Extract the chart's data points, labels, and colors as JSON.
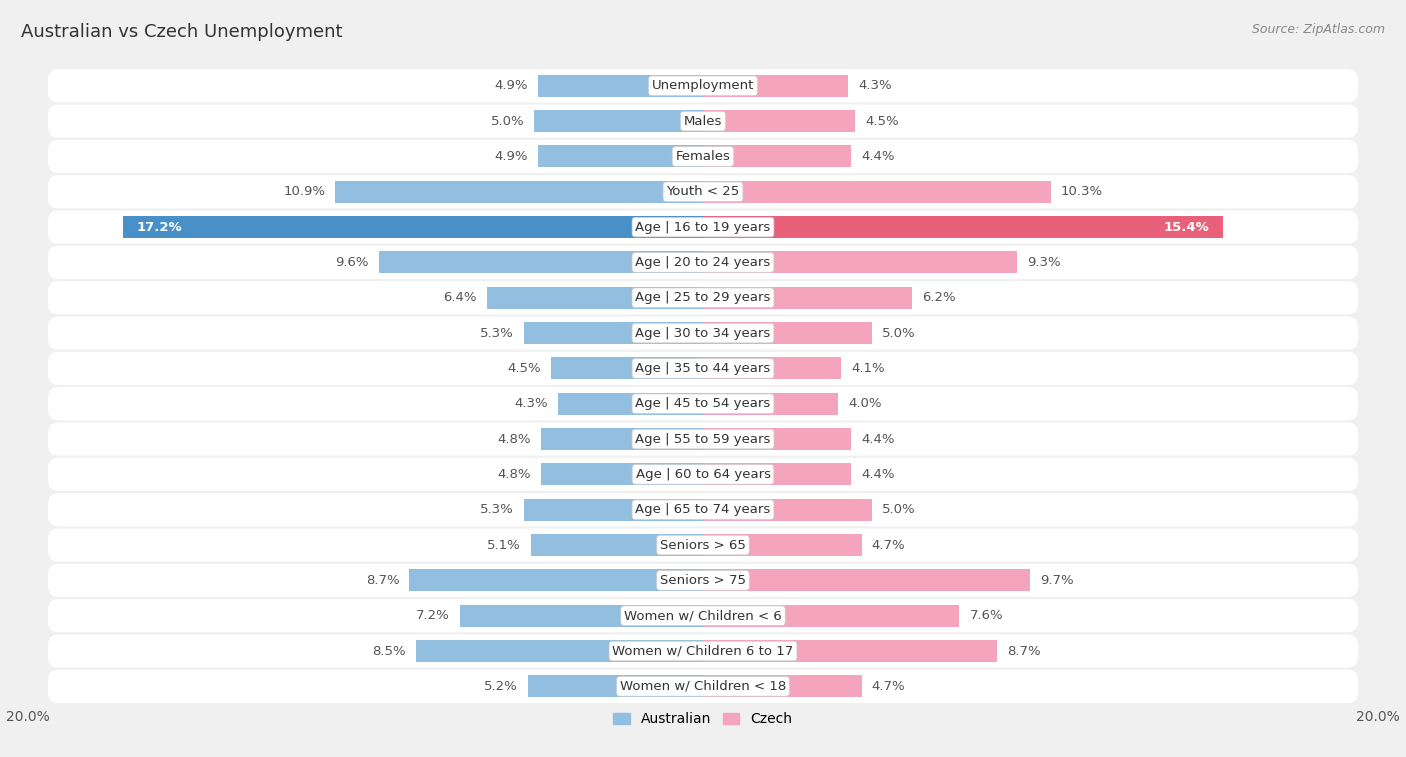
{
  "title": "Australian vs Czech Unemployment",
  "source": "Source: ZipAtlas.com",
  "categories": [
    "Unemployment",
    "Males",
    "Females",
    "Youth < 25",
    "Age | 16 to 19 years",
    "Age | 20 to 24 years",
    "Age | 25 to 29 years",
    "Age | 30 to 34 years",
    "Age | 35 to 44 years",
    "Age | 45 to 54 years",
    "Age | 55 to 59 years",
    "Age | 60 to 64 years",
    "Age | 65 to 74 years",
    "Seniors > 65",
    "Seniors > 75",
    "Women w/ Children < 6",
    "Women w/ Children 6 to 17",
    "Women w/ Children < 18"
  ],
  "australian": [
    4.9,
    5.0,
    4.9,
    10.9,
    17.2,
    9.6,
    6.4,
    5.3,
    4.5,
    4.3,
    4.8,
    4.8,
    5.3,
    5.1,
    8.7,
    7.2,
    8.5,
    5.2
  ],
  "czech": [
    4.3,
    4.5,
    4.4,
    10.3,
    15.4,
    9.3,
    6.2,
    5.0,
    4.1,
    4.0,
    4.4,
    4.4,
    5.0,
    4.7,
    9.7,
    7.6,
    8.7,
    4.7
  ],
  "australian_color": "#92bfe0",
  "czech_color": "#f4a4bc",
  "australian_color_highlight": "#4a90c8",
  "czech_color_highlight": "#e8607a",
  "bar_height": 0.62,
  "bg_color": "#f0f0f0",
  "row_bg_color": "#ffffff",
  "row_gap_color": "#e0e0e0",
  "x_max": 20.0,
  "legend_labels": [
    "Australian",
    "Czech"
  ],
  "label_fontsize": 9.5,
  "cat_fontsize": 9.5,
  "title_fontsize": 13,
  "source_fontsize": 9
}
